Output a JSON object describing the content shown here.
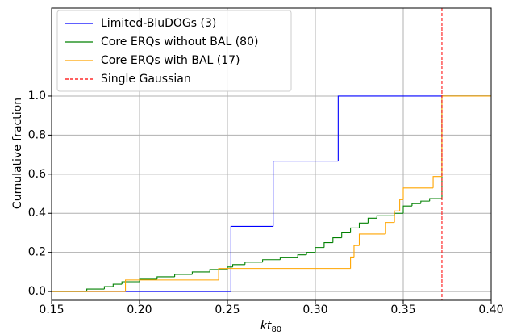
{
  "chart_data": {
    "type": "step",
    "x_label": "kt",
    "x_label_sub": "80",
    "y_label": "Cumulative fraction",
    "xlim": [
      0.15,
      0.4
    ],
    "ylim": [
      -0.045,
      1.45
    ],
    "xticks": [
      0.15,
      {
        "value": 0.2,
        "label": "0.20"
      },
      0.25,
      {
        "value": 0.3,
        "label": "0.30"
      },
      0.35,
      {
        "value": 0.4,
        "label": "0.40"
      }
    ],
    "yticks": [
      {
        "value": 0,
        "label": "0.0"
      },
      0.2,
      0.4,
      0.6,
      0.8,
      {
        "value": 1,
        "label": "1.0"
      }
    ],
    "grid": true,
    "legend": "upper left",
    "series": [
      {
        "name": "Limited-BluDOGs (3)",
        "color": "#0000ff",
        "x": [
          0.15,
          0.252,
          0.276,
          0.313,
          0.4
        ],
        "values": [
          0,
          0.333,
          0.667,
          1,
          1
        ]
      },
      {
        "name": "Core ERQs without BAL (80)",
        "color": "#008000",
        "x": [
          0.15,
          0.17,
          0.18,
          0.185,
          0.19,
          0.2,
          0.21,
          0.22,
          0.23,
          0.24,
          0.25,
          0.253,
          0.26,
          0.27,
          0.28,
          0.29,
          0.295,
          0.3,
          0.305,
          0.31,
          0.315,
          0.32,
          0.325,
          0.33,
          0.335,
          0.345,
          0.35,
          0.355,
          0.36,
          0.365,
          0.372,
          0.4
        ],
        "values": [
          0,
          0.0125,
          0.025,
          0.0375,
          0.05,
          0.0625,
          0.075,
          0.0875,
          0.1,
          0.1125,
          0.125,
          0.1375,
          0.15,
          0.1625,
          0.175,
          0.1875,
          0.2,
          0.225,
          0.25,
          0.275,
          0.3,
          0.325,
          0.35,
          0.375,
          0.3875,
          0.4,
          0.4375,
          0.45,
          0.4625,
          0.475,
          1,
          1
        ]
      },
      {
        "name": "Core ERQs with BAL (17)",
        "color": "#ffa500",
        "x": [
          0.15,
          0.192,
          0.245,
          0.32,
          0.322,
          0.325,
          0.34,
          0.345,
          0.348,
          0.35,
          0.367,
          0.372,
          0.4
        ],
        "values": [
          0,
          0.0588,
          0.1176,
          0.176,
          0.235,
          0.294,
          0.353,
          0.412,
          0.47,
          0.53,
          0.588,
          1,
          1
        ]
      },
      {
        "name": "Single Gaussian",
        "color": "#ff0000",
        "dashed": true,
        "vline": 0.372
      }
    ]
  }
}
